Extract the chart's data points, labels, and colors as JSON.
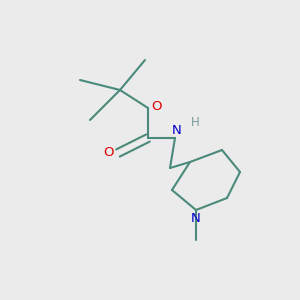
{
  "background_color": "#ebebeb",
  "bond_color": "#4a8a7a",
  "o_color": "#dd0000",
  "n_color": "#0000cc",
  "h_color": "#7a9a9a",
  "line_width": 1.5,
  "figsize": [
    3.0,
    3.0
  ],
  "dpi": 100,
  "xlim": [
    0,
    300
  ],
  "ylim": [
    0,
    300
  ]
}
